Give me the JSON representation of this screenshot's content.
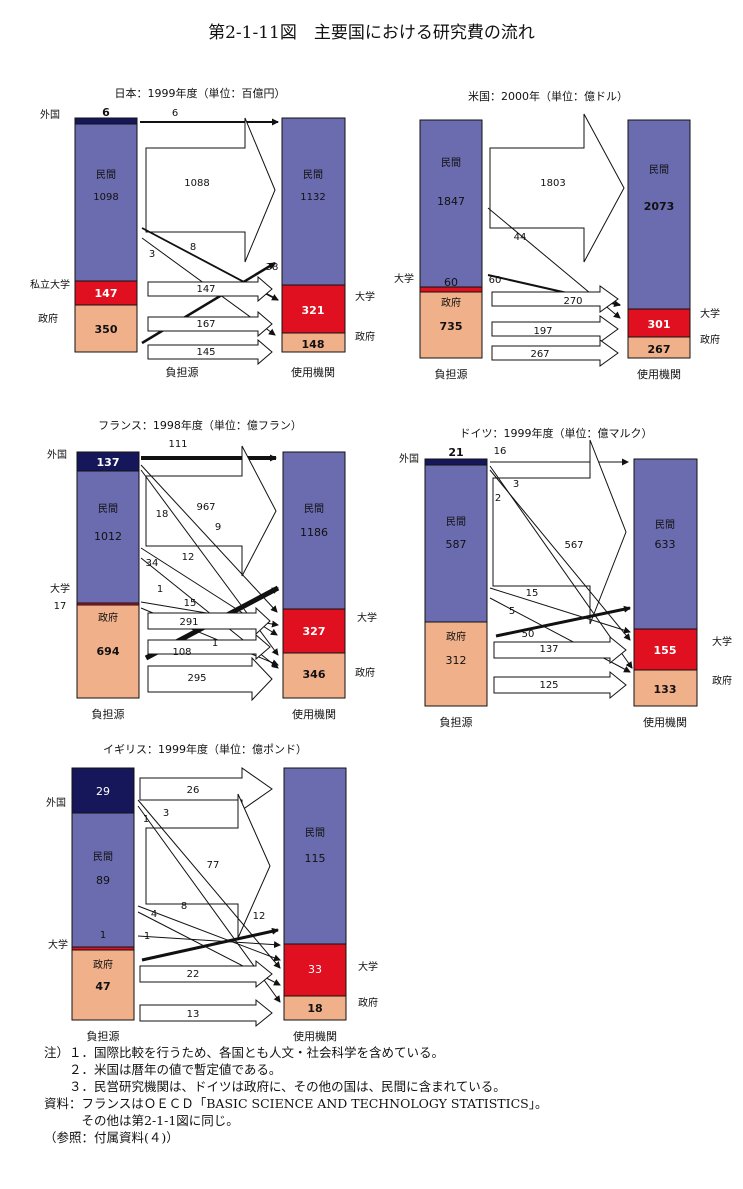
{
  "title": "第2-1-11図　主要国における研究費の流れ",
  "colors": {
    "private": "#6b6bb0",
    "university": "#e01020",
    "government": "#f0b08a",
    "foreign": "#16165a",
    "outline": "#111111"
  },
  "labels": {
    "source": "負担源",
    "user": "使用機関"
  },
  "panels": [
    {
      "id": "japan",
      "title": "日本：1999年度（単位：百億円）",
      "source": [
        {
          "name": "外国",
          "value": "6",
          "kind": "foreign"
        },
        {
          "name": "民間",
          "value": "1098",
          "kind": "private"
        },
        {
          "name": "私立大学",
          "value": "147",
          "kind": "university"
        },
        {
          "name": "政府",
          "value": "350",
          "kind": "government"
        }
      ],
      "user": [
        {
          "name": "民間",
          "value": "1132",
          "kind": "private"
        },
        {
          "name": "大学",
          "value": "321",
          "kind": "university"
        },
        {
          "name": "政府",
          "value": "148",
          "kind": "government"
        }
      ],
      "flows": [
        "6",
        "1088",
        "8",
        "3",
        "38",
        "147",
        "167",
        "145"
      ]
    },
    {
      "id": "usa",
      "title": "米国：2000年（単位：億ドル）",
      "source": [
        {
          "name": "民間",
          "value": "1847",
          "kind": "private"
        },
        {
          "name": "大学",
          "value": "60",
          "kind": "university"
        },
        {
          "name": "政府",
          "value": "735",
          "kind": "government"
        }
      ],
      "user": [
        {
          "name": "民間",
          "value": "2073",
          "kind": "private"
        },
        {
          "name": "大学",
          "value": "301",
          "kind": "university"
        },
        {
          "name": "政府",
          "value": "267",
          "kind": "government"
        }
      ],
      "flows": [
        "1803",
        "44",
        "60",
        "270",
        "197",
        "267"
      ]
    },
    {
      "id": "france",
      "title": "フランス：1998年度（単位：億フラン）",
      "source": [
        {
          "name": "外国",
          "value": "137",
          "kind": "foreign"
        },
        {
          "name": "民間",
          "value": "1012",
          "kind": "private"
        },
        {
          "name": "大学",
          "value": "17",
          "kind": "university"
        },
        {
          "name": "政府",
          "value": "694",
          "kind": "government"
        }
      ],
      "user": [
        {
          "name": "民間",
          "value": "1186",
          "kind": "private"
        },
        {
          "name": "大学",
          "value": "327",
          "kind": "university"
        },
        {
          "name": "政府",
          "value": "346",
          "kind": "government"
        }
      ],
      "flows": [
        "111",
        "967",
        "18",
        "9",
        "34",
        "12",
        "1",
        "15",
        "291",
        "108",
        "1",
        "295"
      ]
    },
    {
      "id": "germany",
      "title": "ドイツ：1999年度（単位：億マルク）",
      "source": [
        {
          "name": "外国",
          "value": "21",
          "kind": "foreign"
        },
        {
          "name": "民間",
          "value": "587",
          "kind": "private"
        },
        {
          "name": "政府",
          "value": "312",
          "kind": "government"
        }
      ],
      "user": [
        {
          "name": "民間",
          "value": "633",
          "kind": "private"
        },
        {
          "name": "大学",
          "value": "155",
          "kind": "university"
        },
        {
          "name": "政府",
          "value": "133",
          "kind": "government"
        }
      ],
      "flows": [
        "16",
        "3",
        "2",
        "567",
        "15",
        "5",
        "50",
        "137",
        "125"
      ]
    },
    {
      "id": "uk",
      "title": "イギリス：1999年度（単位：億ポンド）",
      "source": [
        {
          "name": "外国",
          "value": "29",
          "kind": "foreign"
        },
        {
          "name": "民間",
          "value": "89",
          "kind": "private"
        },
        {
          "name": "大学",
          "value": "1",
          "kind": "university"
        },
        {
          "name": "政府",
          "value": "47",
          "kind": "government"
        }
      ],
      "user": [
        {
          "name": "民間",
          "value": "115",
          "kind": "private"
        },
        {
          "name": "大学",
          "value": "33",
          "kind": "university"
        },
        {
          "name": "政府",
          "value": "18",
          "kind": "government"
        }
      ],
      "flows": [
        "26",
        "1",
        "3",
        "77",
        "4",
        "8",
        "12",
        "1",
        "22",
        "13"
      ]
    }
  ],
  "notes": [
    "注）１．国際比較を行うため、各国とも人文・社会科学を含めている。",
    "　　２．米国は暦年の値で暫定値である。",
    "　　３．民営研究機関は、ドイツは政府に、その他の国は、民間に含まれている。",
    "資料：フランスはＯＥＣＤ「BASIC SCIENCE AND TECHNOLOGY STATISTICS」。",
    "　　　その他は第2-1-1図に同じ。",
    "（参照：付属資料(４)）"
  ]
}
